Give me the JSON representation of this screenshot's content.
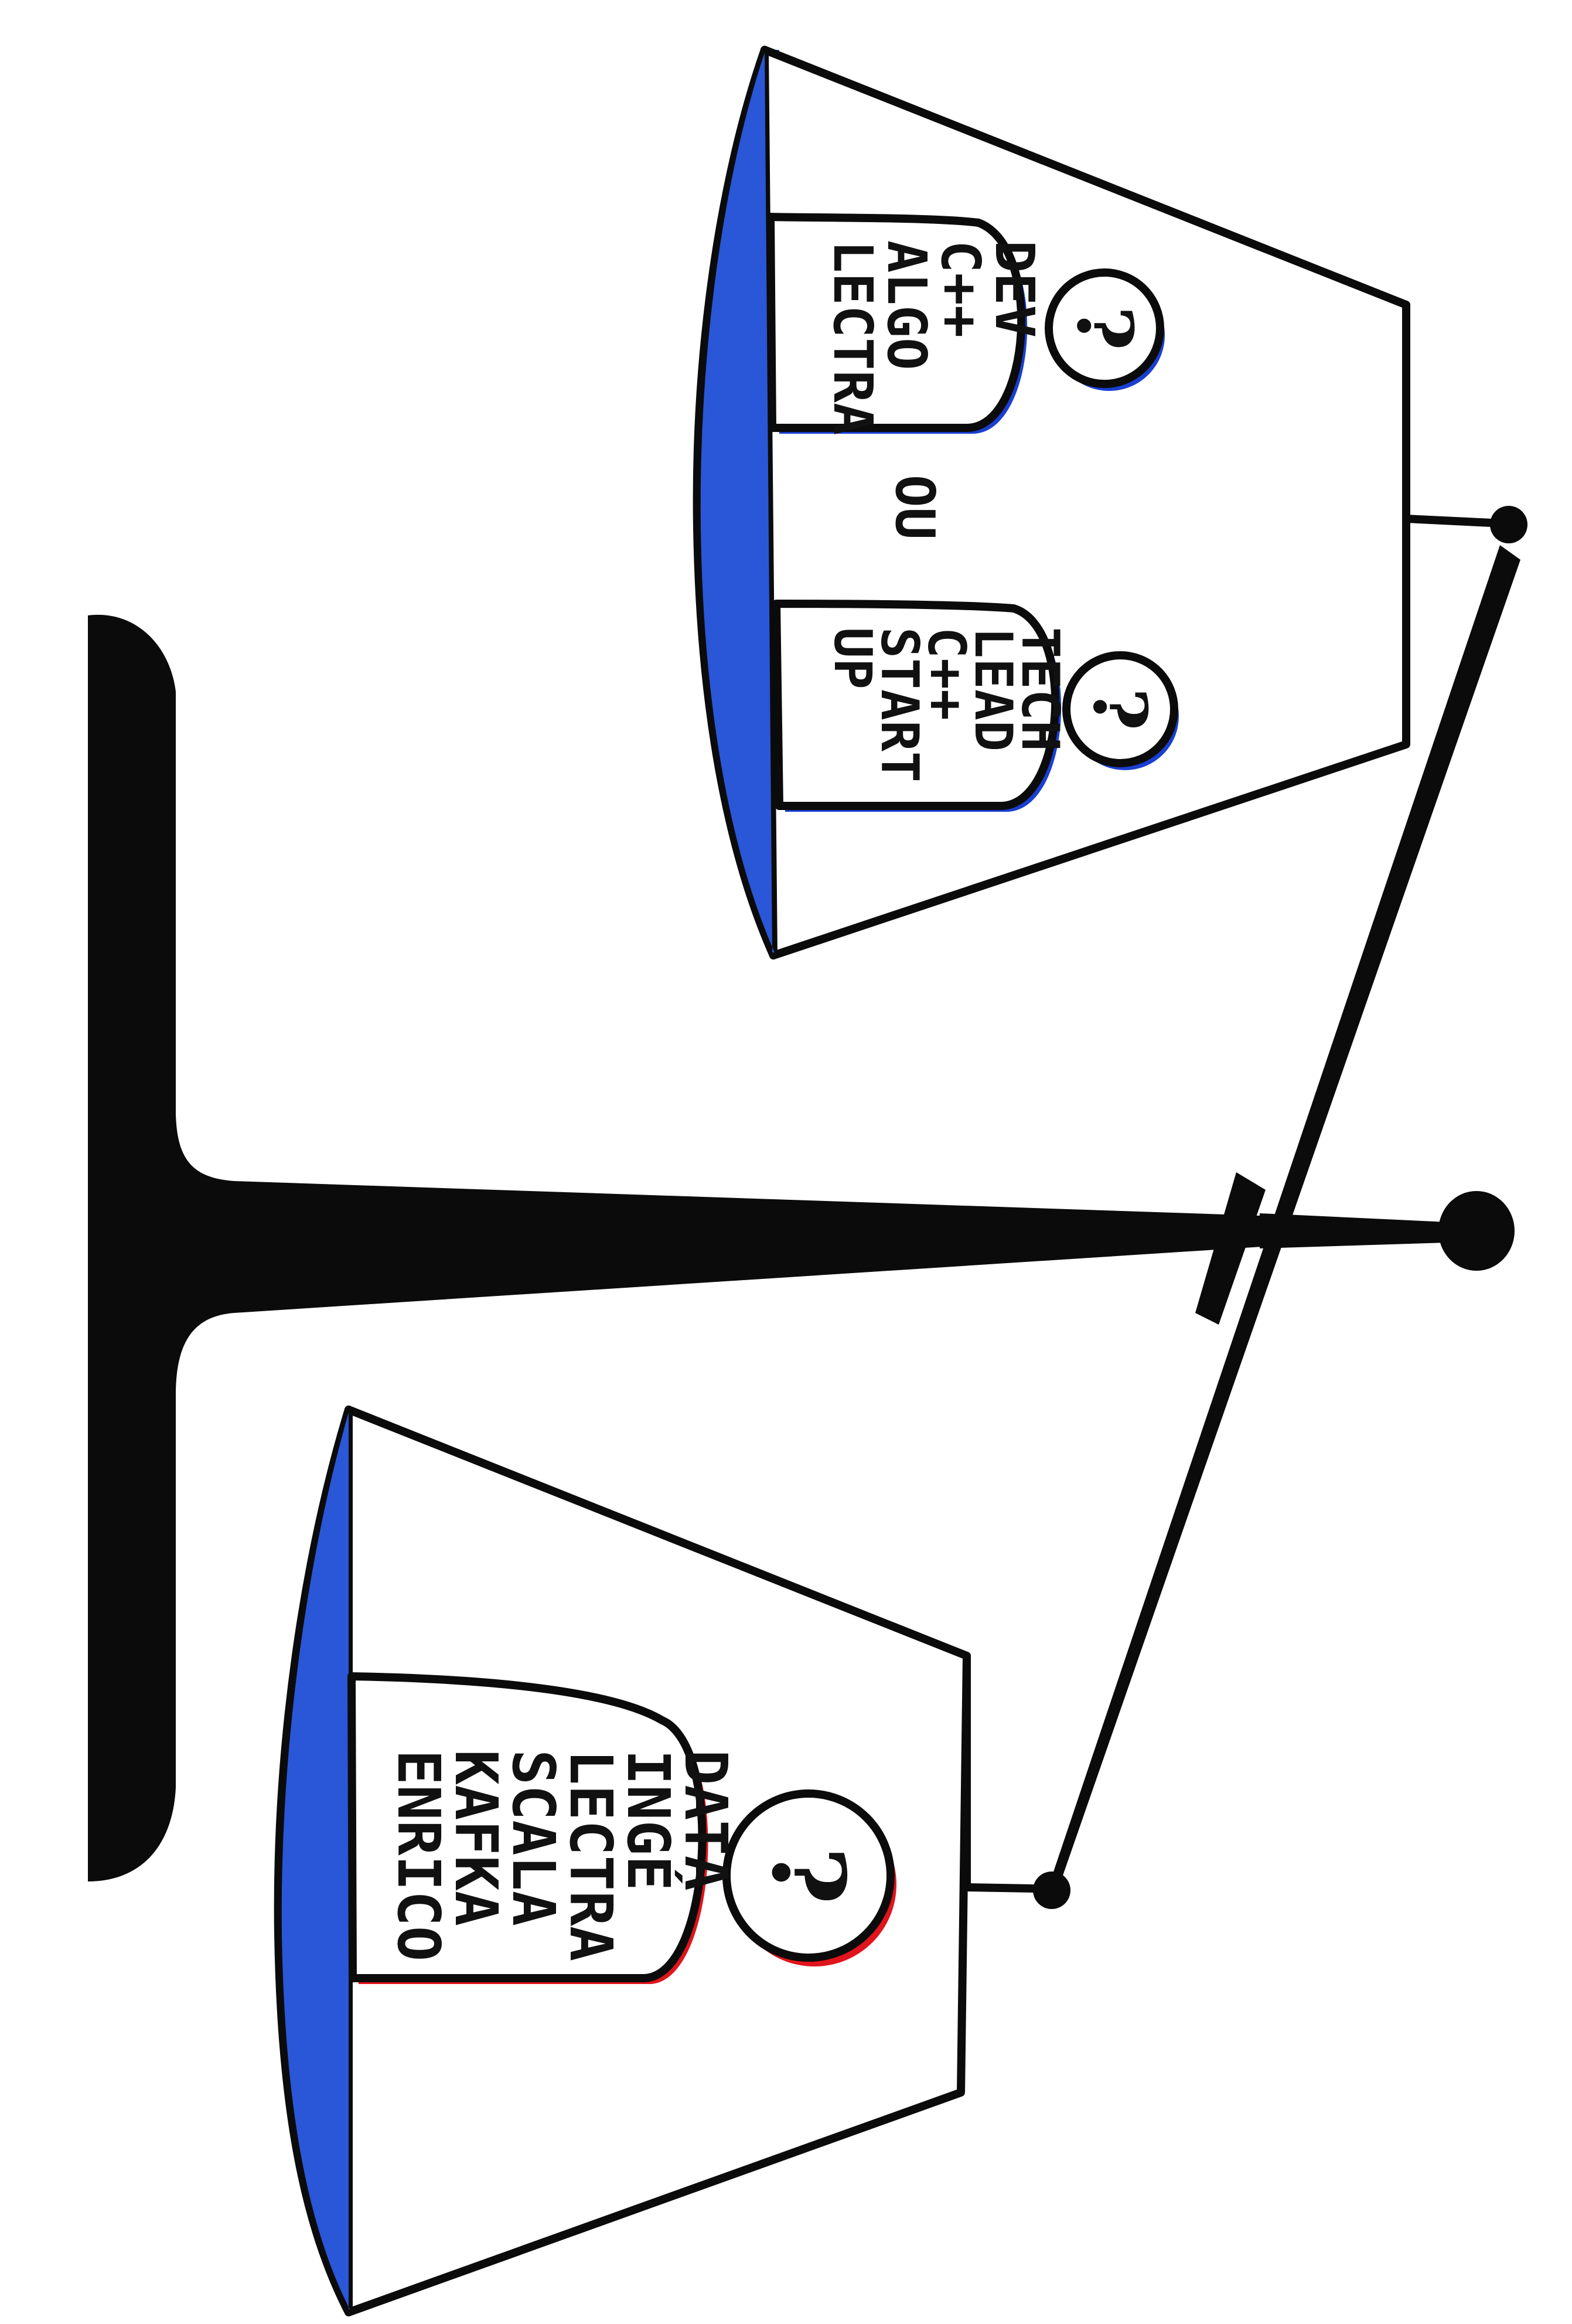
{
  "colors": {
    "ink": "#0b0b0b",
    "pan_fill": "#2a56d8",
    "pan_fill_dark": "#1e3fb8",
    "shadow_blue": "#1a3fd0",
    "shadow_red": "#e0141c",
    "paper": "#ffffff"
  },
  "upper_pan": {
    "figures": [
      {
        "icon": "question-head-icon",
        "head": "?",
        "lines": [
          "DEV",
          "C++",
          "ALGO",
          "LECTRA"
        ]
      },
      {
        "icon": "question-head-icon",
        "head": "?",
        "lines": [
          "TECH",
          "LEAD",
          "C++",
          "START",
          "UP"
        ]
      }
    ],
    "separator": "OU"
  },
  "lower_pan": {
    "figures": [
      {
        "icon": "question-head-icon",
        "head": "?",
        "lines": [
          "DATA",
          "INGÉ",
          "LECTRA",
          "SCALA",
          "KAFKA",
          "ENRICO"
        ]
      }
    ]
  }
}
